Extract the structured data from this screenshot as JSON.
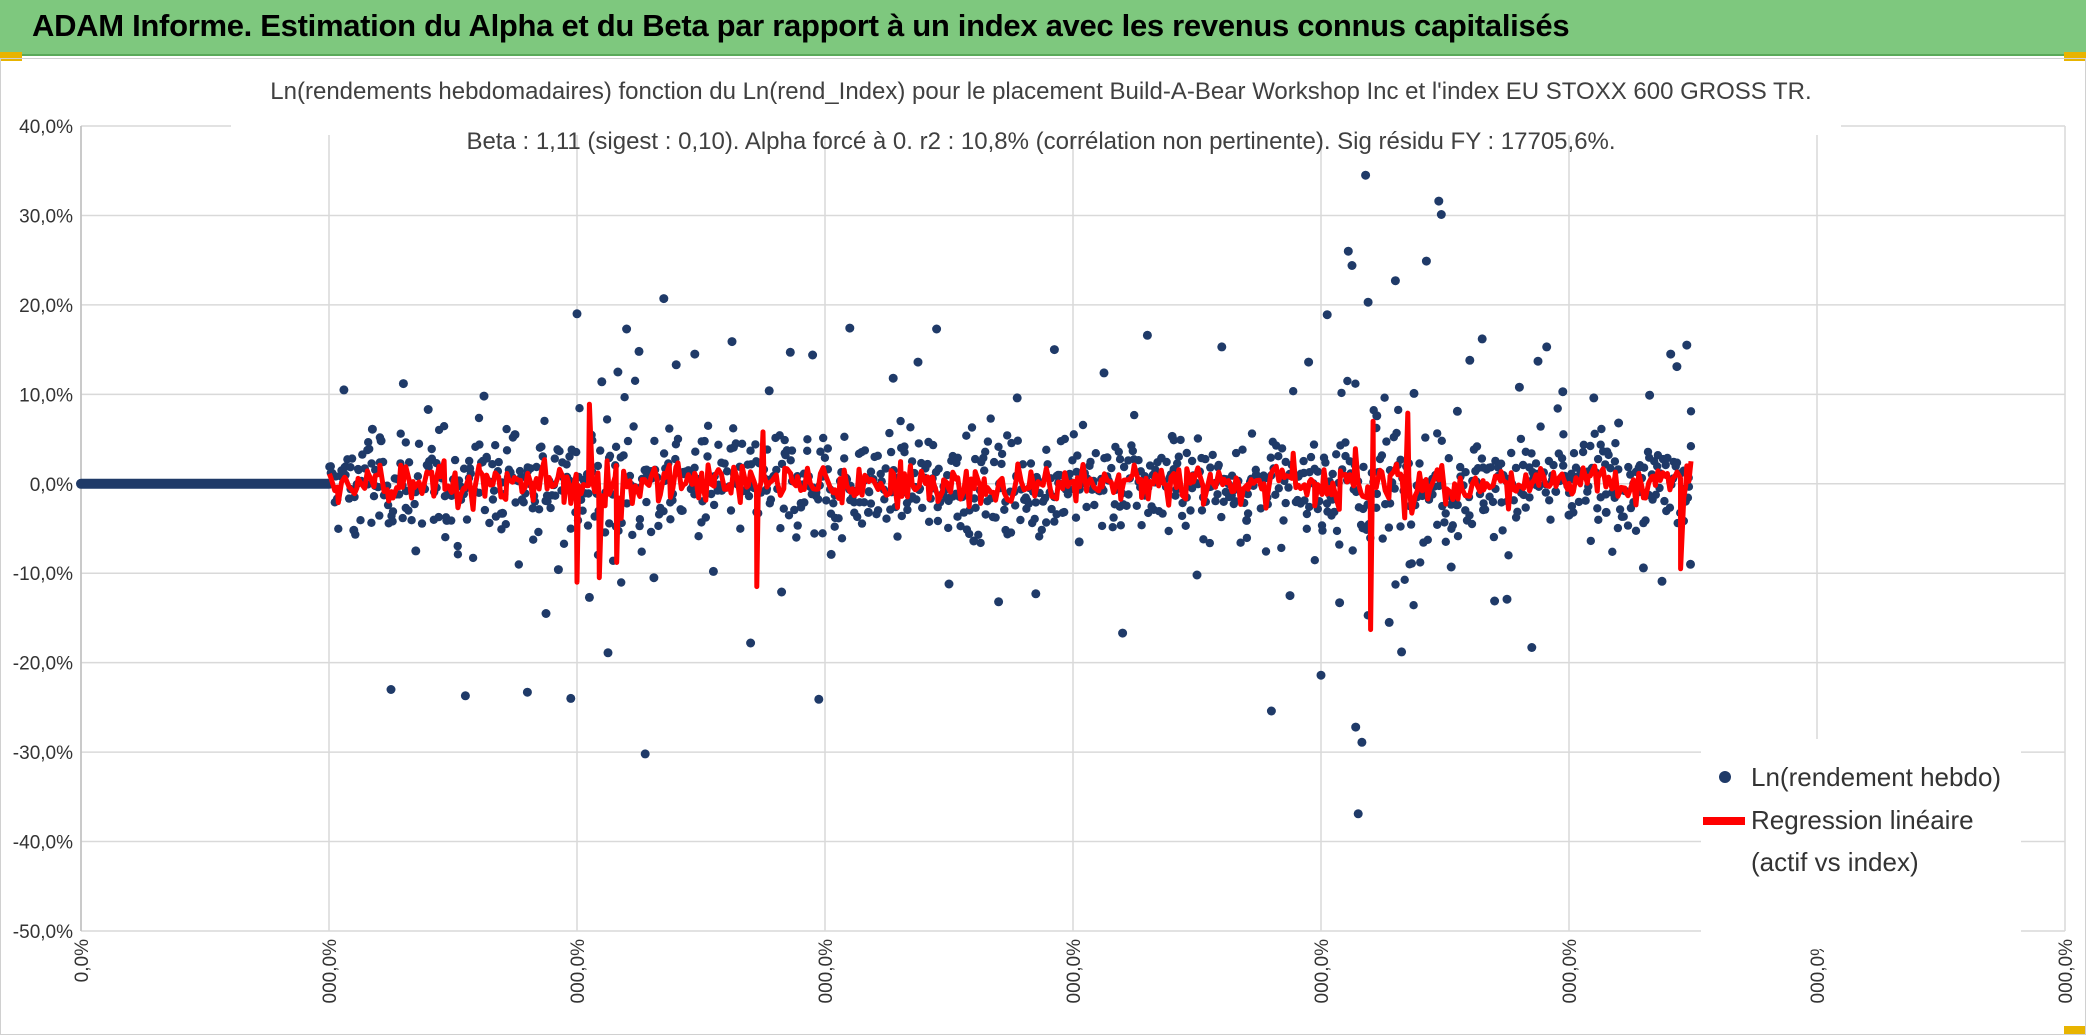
{
  "header": {
    "title": "ADAM Informe. Estimation du Alpha et du Beta par rapport à un index avec les revenus connus capitalisés",
    "background": "#7ec87e"
  },
  "chart_data": {
    "type": "scatter",
    "title": "Ln(rendements hebdomadaires) fonction du Ln(rend_Index) pour le placement Build-A-Bear Workshop Inc et l'index EU STOXX 600 GROSS TR.",
    "subtitle": "Beta : 1,11 (sigest : 0,10).  Alpha forcé à 0. r2 : 10,8% (corrélation non pertinente). Sig résidu FY : 17705,6%.",
    "xlabel": "",
    "ylabel": "",
    "ylim": [
      -50,
      40
    ],
    "y_ticks": [
      40,
      30,
      20,
      10,
      0,
      -10,
      -20,
      -30,
      -40,
      -50
    ],
    "y_tick_labels": [
      "40,0%",
      "30,0%",
      "20,0%",
      "10,0%",
      "0,0%",
      "-10,0%",
      "-20,0%",
      "-30,0%",
      "-40,0%",
      "-50,0%"
    ],
    "x_tick_labels": [
      "0,0%",
      "000,0%",
      "000,0%",
      "000,0%",
      "000,0%",
      "000,0%",
      "000,0%",
      "000,0%",
      "000,0%"
    ],
    "grid": true,
    "legend_position": "right",
    "series": [
      {
        "name": "Ln(rendement hebdo)",
        "type": "scatter",
        "color": "#1f3a68",
        "points": [
          [
            2.12,
            10.5
          ],
          [
            2.2,
            -5.2
          ],
          [
            2.35,
            6.1
          ],
          [
            2.42,
            4.8
          ],
          [
            2.5,
            -23.0
          ],
          [
            2.6,
            11.2
          ],
          [
            2.7,
            -7.5
          ],
          [
            2.8,
            8.3
          ],
          [
            2.95,
            -4.1
          ],
          [
            3.1,
            -23.7
          ],
          [
            3.25,
            9.8
          ],
          [
            3.4,
            -3.3
          ],
          [
            3.5,
            5.5
          ],
          [
            3.6,
            -23.3
          ],
          [
            3.75,
            -14.5
          ],
          [
            3.85,
            -9.6
          ],
          [
            3.95,
            -24.0
          ],
          [
            4.0,
            19.0
          ],
          [
            4.1,
            -12.7
          ],
          [
            4.2,
            11.4
          ],
          [
            4.25,
            -18.9
          ],
          [
            4.33,
            12.5
          ],
          [
            4.4,
            17.3
          ],
          [
            4.5,
            14.8
          ],
          [
            4.55,
            -30.2
          ],
          [
            4.62,
            -10.5
          ],
          [
            4.7,
            20.7
          ],
          [
            4.8,
            13.3
          ],
          [
            4.95,
            14.5
          ],
          [
            5.1,
            -9.8
          ],
          [
            5.25,
            15.9
          ],
          [
            5.4,
            -17.8
          ],
          [
            5.55,
            10.4
          ],
          [
            5.65,
            -12.1
          ],
          [
            5.72,
            14.7
          ],
          [
            5.9,
            14.4
          ],
          [
            5.95,
            -24.1
          ],
          [
            6.05,
            -7.9
          ],
          [
            6.2,
            17.4
          ],
          [
            6.35,
            -3.2
          ],
          [
            6.55,
            11.8
          ],
          [
            6.75,
            13.6
          ],
          [
            6.9,
            17.3
          ],
          [
            7.0,
            -11.2
          ],
          [
            7.2,
            -6.4
          ],
          [
            7.4,
            -13.2
          ],
          [
            7.55,
            9.6
          ],
          [
            7.7,
            -12.3
          ],
          [
            7.85,
            15.0
          ],
          [
            8.05,
            -6.5
          ],
          [
            8.25,
            12.4
          ],
          [
            8.4,
            -16.7
          ],
          [
            8.6,
            16.6
          ],
          [
            8.8,
            5.3
          ],
          [
            9.0,
            -10.2
          ],
          [
            9.2,
            15.3
          ],
          [
            9.4,
            -4.1
          ],
          [
            9.6,
            -25.4
          ],
          [
            9.75,
            -12.5
          ],
          [
            9.9,
            13.6
          ],
          [
            10.0,
            -21.4
          ],
          [
            10.05,
            18.9
          ],
          [
            10.15,
            -13.3
          ],
          [
            10.22,
            26.0
          ],
          [
            10.25,
            24.4
          ],
          [
            10.28,
            -27.2
          ],
          [
            10.3,
            -36.9
          ],
          [
            10.33,
            -28.9
          ],
          [
            10.36,
            34.5
          ],
          [
            10.38,
            20.3
          ],
          [
            10.45,
            7.6
          ],
          [
            10.55,
            -15.5
          ],
          [
            10.6,
            22.7
          ],
          [
            10.65,
            -18.8
          ],
          [
            10.75,
            10.1
          ],
          [
            10.85,
            24.9
          ],
          [
            10.95,
            31.6
          ],
          [
            10.97,
            30.1
          ],
          [
            11.05,
            -9.3
          ],
          [
            11.2,
            13.8
          ],
          [
            11.3,
            16.2
          ],
          [
            11.4,
            -13.1
          ],
          [
            11.5,
            -12.9
          ],
          [
            11.6,
            10.8
          ],
          [
            11.7,
            -18.3
          ],
          [
            11.75,
            13.7
          ],
          [
            11.82,
            15.3
          ],
          [
            12.0,
            -3.5
          ],
          [
            12.2,
            9.6
          ],
          [
            12.4,
            6.8
          ],
          [
            12.6,
            -9.4
          ],
          [
            12.75,
            -10.9
          ],
          [
            12.82,
            14.5
          ],
          [
            12.87,
            13.1
          ],
          [
            12.95,
            15.5
          ],
          [
            12.98,
            -9.0
          ],
          [
            12.65,
            9.9
          ],
          [
            12.3,
            -3.2
          ],
          [
            11.95,
            10.3
          ],
          [
            11.1,
            8.1
          ]
        ],
        "note_dense_cloud_range_x": [
          2.0,
          13.0
        ]
      },
      {
        "name": "Regression linéaire\n(actif vs index)",
        "type": "line",
        "color": "#ff0000",
        "points": [
          [
            2.0,
            0.0
          ],
          [
            4.0,
            -11.0
          ],
          [
            4.1,
            8.9
          ],
          [
            4.18,
            -10.5
          ],
          [
            4.32,
            -8.8
          ],
          [
            5.45,
            -11.5
          ],
          [
            5.5,
            5.8
          ],
          [
            10.4,
            -16.3
          ],
          [
            10.42,
            7.0
          ],
          [
            10.7,
            7.9
          ],
          [
            12.9,
            -9.5
          ],
          [
            12.95,
            2.0
          ]
        ]
      },
      {
        "name": "",
        "type": "line",
        "color": "#1f3a68",
        "points": [
          [
            0.0,
            0.0
          ],
          [
            2.0,
            0.0
          ]
        ]
      }
    ]
  },
  "legend": {
    "scatter_label": "Ln(rendement hebdo)",
    "line_label_1": "Regression linéaire",
    "line_label_2": "(actif vs index)"
  }
}
